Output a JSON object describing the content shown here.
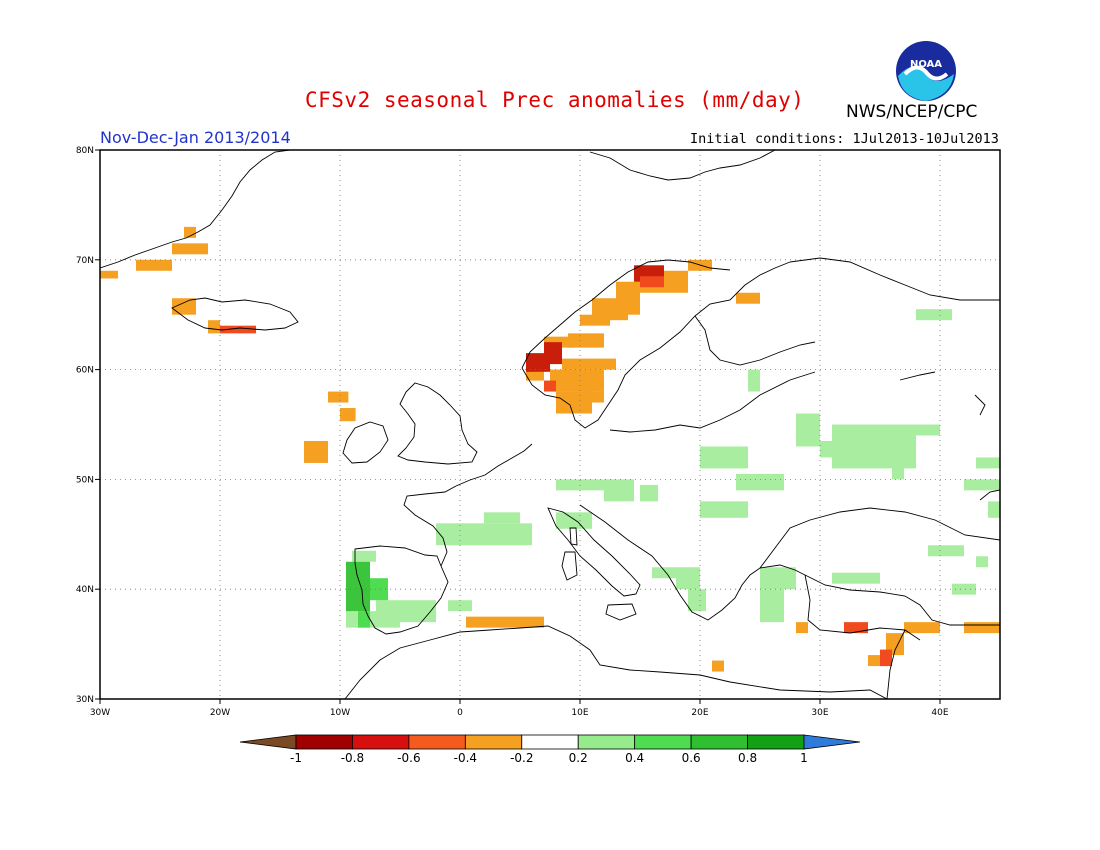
{
  "title": "CFSv2 seasonal Prec anomalies (mm/day)",
  "agency": "NWS/NCEP/CPC",
  "logo_text": "NOAA",
  "period": "Nov-Dec-Jan 2013/2014",
  "initial_conditions": "Initial conditions: 1Jul2013-10Jul2013",
  "map": {
    "lon_range": [
      -30,
      45
    ],
    "lat_range": [
      30,
      80
    ],
    "lat_ticks": [
      {
        "value": 80,
        "label": "80N"
      },
      {
        "value": 70,
        "label": "70N"
      },
      {
        "value": 60,
        "label": "60N"
      },
      {
        "value": 50,
        "label": "50N"
      },
      {
        "value": 40,
        "label": "40N"
      },
      {
        "value": 30,
        "label": "30N"
      }
    ],
    "lon_ticks": [
      {
        "value": -30,
        "label": "30W"
      },
      {
        "value": -20,
        "label": "20W"
      },
      {
        "value": -10,
        "label": "10W"
      },
      {
        "value": 0,
        "label": "0"
      },
      {
        "value": 10,
        "label": "10E"
      },
      {
        "value": 20,
        "label": "20E"
      },
      {
        "value": 30,
        "label": "30E"
      },
      {
        "value": 40,
        "label": "40E"
      }
    ],
    "grid": "dotted",
    "cells": [
      [
        -30,
        68.3,
        -28.5,
        69
      ],
      [
        -27,
        69,
        -24,
        70
      ],
      [
        -23,
        72,
        -22,
        73
      ],
      [
        -24,
        70.5,
        -21,
        71.5
      ],
      [
        -24,
        65,
        -22,
        66.5
      ],
      [
        -21,
        63.3,
        -20,
        64.5
      ],
      [
        -11,
        57,
        -9.3,
        58
      ],
      [
        -10,
        55.3,
        -8.7,
        56.5
      ],
      [
        -20,
        63.3,
        -17,
        64,
        "-0.6"
      ],
      [
        -13,
        51.5,
        -11,
        53.5
      ],
      [
        5.5,
        59,
        7,
        60
      ],
      [
        7,
        61,
        8.5,
        63
      ],
      [
        8.5,
        62,
        9.5,
        63
      ],
      [
        7.5,
        58,
        12,
        60
      ],
      [
        8.5,
        60,
        13,
        61
      ],
      [
        9,
        62,
        12,
        63.3
      ],
      [
        10,
        64,
        12.5,
        65
      ],
      [
        11,
        64.5,
        14,
        66.5
      ],
      [
        13,
        65,
        15,
        68
      ],
      [
        15,
        67,
        19,
        69
      ],
      [
        19,
        69,
        21,
        70
      ],
      [
        23,
        66,
        25,
        67
      ],
      [
        8,
        56,
        11,
        58
      ],
      [
        10.5,
        57,
        12,
        58
      ],
      [
        5.5,
        59.8,
        7.5,
        61.5,
        "-0.8"
      ],
      [
        7,
        60.5,
        8.5,
        62.5,
        "-0.8"
      ],
      [
        14.5,
        68,
        17,
        69.5,
        "-0.8"
      ],
      [
        15,
        67.5,
        17,
        68.5,
        "-0.6"
      ],
      [
        7,
        58,
        8,
        59,
        "-0.6"
      ],
      [
        0.5,
        36.5,
        7,
        37.5
      ],
      [
        28,
        36,
        29,
        37
      ],
      [
        37,
        36,
        40,
        37
      ],
      [
        42,
        36,
        45,
        37
      ],
      [
        35.5,
        34,
        37,
        36
      ],
      [
        34,
        33,
        36,
        34
      ],
      [
        21,
        32.5,
        22,
        33.5
      ],
      [
        32,
        36,
        34,
        37,
        "-0.6"
      ],
      [
        35,
        33,
        36,
        34.5,
        "-0.6"
      ],
      [
        -2,
        44,
        6,
        46,
        "0.2"
      ],
      [
        2,
        46,
        5,
        47,
        "0.2"
      ],
      [
        8,
        45.5,
        11,
        47,
        "0.2"
      ],
      [
        8,
        49,
        13,
        50,
        "0.2"
      ],
      [
        12,
        48,
        14.5,
        50,
        "0.2"
      ],
      [
        15,
        48,
        16.5,
        49.5,
        "0.2"
      ],
      [
        20,
        51,
        24,
        53,
        "0.2"
      ],
      [
        23,
        49,
        27,
        50.5,
        "0.2"
      ],
      [
        20,
        46.5,
        24,
        48,
        "0.2"
      ],
      [
        28,
        53,
        30,
        56,
        "0.2"
      ],
      [
        30,
        52,
        32,
        53.5,
        "0.2"
      ],
      [
        31,
        51,
        38,
        55,
        "0.2"
      ],
      [
        36,
        50,
        37,
        52,
        "0.2"
      ],
      [
        38,
        54,
        40,
        55,
        "0.2"
      ],
      [
        43,
        51,
        45,
        52,
        "0.2"
      ],
      [
        42,
        49,
        45,
        50,
        "0.2"
      ],
      [
        44,
        46.5,
        45,
        48,
        "0.2"
      ],
      [
        24,
        58,
        25,
        60,
        "0.2"
      ],
      [
        38,
        64.5,
        41,
        65.5,
        "0.2"
      ],
      [
        39,
        43,
        42,
        44,
        "0.2"
      ],
      [
        43,
        42,
        44,
        43,
        "0.2"
      ],
      [
        41,
        39.5,
        43,
        40.5,
        "0.2"
      ],
      [
        25,
        40,
        28,
        42,
        "0.2"
      ],
      [
        25,
        37,
        27,
        40,
        "0.2"
      ],
      [
        31,
        40.5,
        35,
        41.5,
        "0.2"
      ],
      [
        18,
        40,
        20,
        42,
        "0.2"
      ],
      [
        19,
        38,
        20.5,
        40,
        "0.2"
      ],
      [
        16,
        41,
        18,
        42,
        "0.2"
      ],
      [
        -7,
        37,
        -2,
        39,
        "0.2"
      ],
      [
        -1,
        38,
        1,
        39,
        "0.2"
      ],
      [
        -9,
        42.5,
        -7,
        43.5,
        "0.2"
      ],
      [
        -9.5,
        36.5,
        -5,
        38,
        "0.2"
      ],
      [
        -8,
        39,
        -6,
        41,
        "0.4"
      ],
      [
        -9.5,
        38,
        -7.5,
        42.5,
        "0.6"
      ],
      [
        -8.5,
        36.5,
        -7.5,
        38,
        "0.4"
      ]
    ]
  },
  "colorbar": {
    "bins": [
      {
        "color": "#7b4a24",
        "label": "-1"
      },
      {
        "color": "#a00000",
        "label": "-0.8"
      },
      {
        "color": "#d70f0f",
        "label": "-0.6"
      },
      {
        "color": "#f55a1e",
        "label": "-0.4"
      },
      {
        "color": "#f5a021",
        "label": "-0.2"
      },
      {
        "color": "#ffffff",
        "label": "0.2"
      },
      {
        "color": "#96eb8c",
        "label": "0.4"
      },
      {
        "color": "#50dc50",
        "label": "0.6"
      },
      {
        "color": "#30bf30",
        "label": "0.8"
      },
      {
        "color": "#14a014",
        "label": "1"
      },
      {
        "color": "#2f7bdc",
        "label": ""
      }
    ],
    "colors_by_class": {
      "-0.8": "#c81e0a",
      "-0.6": "#f04a1e",
      "default": "#f5a021",
      "0.2": "#a9eea0",
      "0.4": "#50dc50",
      "0.6": "#3cc43c"
    }
  }
}
